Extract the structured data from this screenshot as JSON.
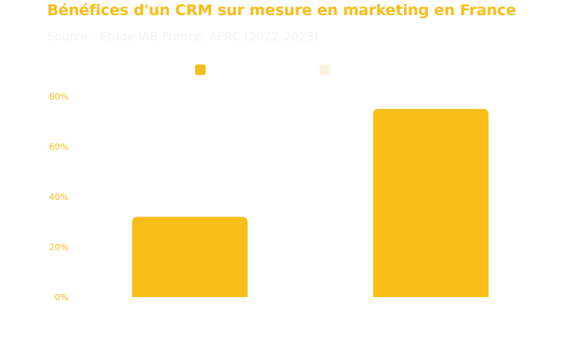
{
  "title": "Bénéfices d'un CRM sur mesure en marketing en France",
  "subtitle": "Source : Etude IAB France, AFRC (2022-2023)",
  "colors": {
    "accent": "#f7bd19",
    "series_secondary": "#fdf3dc",
    "subtitle": "#f3f3f3"
  },
  "chart_data": {
    "type": "bar",
    "title": "Bénéfices d'un CRM sur mesure en marketing en France",
    "subtitle": "Source : Etude IAB France, AFRC (2022-2023)",
    "categories": [
      "",
      ""
    ],
    "series": [
      {
        "values": [
          32,
          75
        ],
        "color": "#f7bd19"
      },
      {
        "values": [
          0,
          0
        ],
        "color": "#fdf3dc"
      }
    ],
    "ylim": [
      0,
      80
    ],
    "yticks": [
      0,
      20,
      40,
      60,
      80
    ],
    "ytick_labels": [
      "0%",
      "20%",
      "40%",
      "60%",
      "80%"
    ],
    "grid": false,
    "legend": "top-center"
  }
}
